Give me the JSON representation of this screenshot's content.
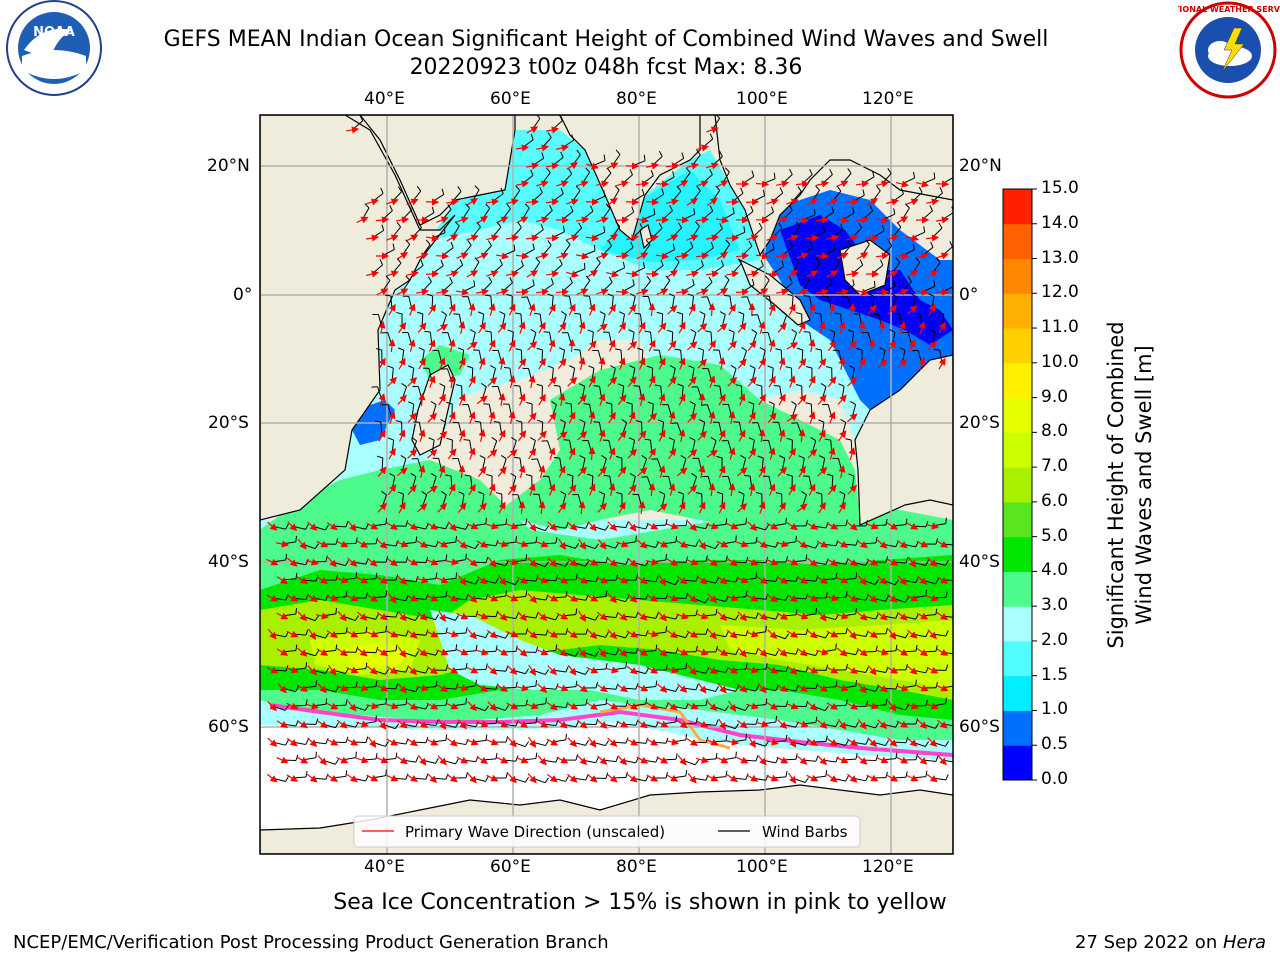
{
  "title": {
    "line1": "GEFS MEAN Indian Ocean Significant Height of Combined Wind Waves and Swell",
    "line2": "20220923 t00z 048h fcst   Max: 8.36"
  },
  "logos": {
    "left": {
      "name": "noaa-logo",
      "text": "NOAA"
    },
    "right": {
      "name": "nws-logo",
      "text": "NATIONAL WEATHER SERVICE"
    }
  },
  "axes": {
    "lon_labels": [
      "40°E",
      "60°E",
      "80°E",
      "100°E",
      "120°E"
    ],
    "lat_labels": [
      "20°N",
      "0°",
      "20°S",
      "40°S",
      "60°S"
    ]
  },
  "colorbar": {
    "label_line1": "Significant Height of Combined",
    "label_line2": "Wind Waves and Swell [m]",
    "ticks": [
      "0.0",
      "0.5",
      "1.0",
      "1.5",
      "2.0",
      "3.0",
      "4.0",
      "5.0",
      "6.0",
      "7.0",
      "8.0",
      "9.0",
      "10.0",
      "11.0",
      "12.0",
      "13.0",
      "14.0",
      "15.0"
    ],
    "colors": [
      "#0000ff",
      "#0070ff",
      "#00eeff",
      "#4ffcff",
      "#aaffff",
      "#4dfb8c",
      "#00e600",
      "#5ae61c",
      "#a8f000",
      "#ccff00",
      "#e6ff00",
      "#fff000",
      "#ffd000",
      "#ffb000",
      "#ff8800",
      "#ff6000",
      "#ff2000"
    ]
  },
  "legend": {
    "items": [
      {
        "label": "Primary Wave Direction (unscaled)",
        "color": "#ff0000"
      },
      {
        "label": "Wind Barbs",
        "color": "#000000"
      }
    ]
  },
  "footer": {
    "subtitle": "Sea Ice Concentration > 15% is shown in pink to yellow",
    "credit": "NCEP/EMC/Verification Post Processing Product Generation Branch",
    "date": "27 Sep 2022 on ",
    "host": "Hera"
  },
  "map": {
    "extent": {
      "lon_min": 20,
      "lon_max": 130,
      "lat_min": -75,
      "lat_max": 28
    },
    "land_color": "#efecdc",
    "max_wave_height_m": 8.36
  }
}
